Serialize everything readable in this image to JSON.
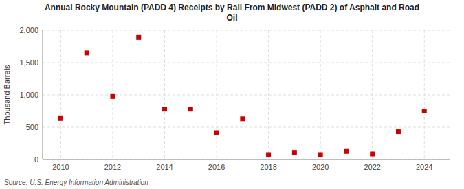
{
  "chart_data": {
    "type": "scatter",
    "title": "Annual Rocky Mountain (PADD 4) Receipts by Rail From Midwest (PADD 2) of Asphalt and Road\nOil",
    "ylabel": "Thousand Barrels",
    "source": "Source: U.S. Energy Information Administration",
    "x": [
      2010,
      2011,
      2012,
      2013,
      2014,
      2015,
      2016,
      2017,
      2018,
      2019,
      2020,
      2021,
      2022,
      2023,
      2024
    ],
    "values": [
      635,
      1650,
      975,
      1890,
      780,
      780,
      415,
      630,
      75,
      110,
      75,
      125,
      85,
      430,
      750
    ],
    "color": "#cc0000",
    "marker": "square",
    "xlim": [
      2009.3,
      2025.0
    ],
    "xticks": [
      2010,
      2012,
      2014,
      2016,
      2018,
      2020,
      2022,
      2024
    ],
    "ylim": [
      0,
      2000
    ],
    "yticks": [
      0,
      500,
      {
        "value": 1000,
        "label": "1,000"
      },
      {
        "value": 1500,
        "label": "1,500"
      },
      {
        "value": 2000,
        "label": "2,000"
      }
    ],
    "grid": true
  }
}
